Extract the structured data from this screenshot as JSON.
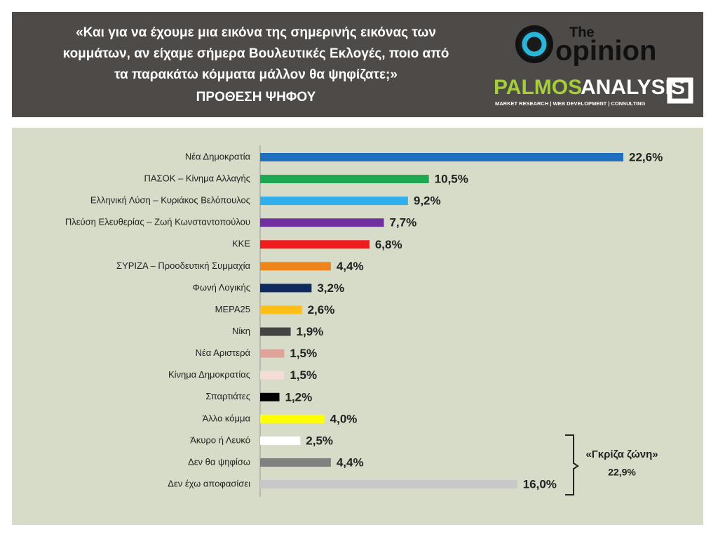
{
  "header": {
    "title_lines": [
      "«Και για να έχουμε μια εικόνα της σημερινής εικόνας των",
      "κομμάτων, αν είχαμε σήμερα Βουλευτικές Εκλογές, ποιο από",
      "τα παρακάτω κόμματα μάλλον θα ψηφίζατε;»"
    ],
    "subtitle": "ΠΡΟΘΕΣΗ ΨΗΦΟΥ"
  },
  "logos": {
    "the": "The",
    "opinion": "opinion",
    "palmos": "PALMOS",
    "analysis": "ANALYSIS",
    "tagline": "MARKET RESEARCH | WEB DEVELOPMENT | CONSULTING"
  },
  "chart_data": {
    "type": "bar",
    "categories": [
      "Νέα Δημοκρατία",
      "ΠΑΣΟΚ – Κίνημα Αλλαγής",
      "Ελληνική Λύση – Κυριάκος Βελόπουλος",
      "Πλεύση Ελευθερίας – Ζωή Κωνσταντοπούλου",
      "ΚΚΕ",
      "ΣΥΡΙΖΑ – Προοδευτική Συμμαχία",
      "Φωνή Λογικής",
      "ΜΕΡΑ25",
      "Νίκη",
      "Νέα Αριστερά",
      "Κίνημα Δημοκρατίας",
      "Σπαρτιάτες",
      "Άλλο κόμμα",
      "Άκυρο ή Λευκό",
      "Δεν θα ψηφίσω",
      "Δεν έχω αποφασίσει"
    ],
    "values": [
      22.6,
      10.5,
      9.2,
      7.7,
      6.8,
      4.4,
      3.2,
      2.6,
      1.9,
      1.5,
      1.5,
      1.2,
      4.0,
      2.5,
      4.4,
      16.0
    ],
    "value_labels": [
      "22,6%",
      "10,5%",
      "9,2%",
      "7,7%",
      "6,8%",
      "4,4%",
      "3,2%",
      "2,6%",
      "1,9%",
      "1,5%",
      "1,5%",
      "1,2%",
      "4,0%",
      "2,5%",
      "4,4%",
      "16,0%"
    ],
    "colors": [
      "#1f6fbf",
      "#1fa84f",
      "#2fb0ec",
      "#7030a0",
      "#ee1c1c",
      "#f0841c",
      "#0f2a5e",
      "#fbbf17",
      "#444444",
      "#e0a39a",
      "#f4dcd8",
      "#000000",
      "#ffff00",
      "#ffffff",
      "#808080",
      "#c8c8c8"
    ],
    "annotation_lines": [
      "«Γκρίζα ζώνη»",
      "22,9%"
    ]
  }
}
